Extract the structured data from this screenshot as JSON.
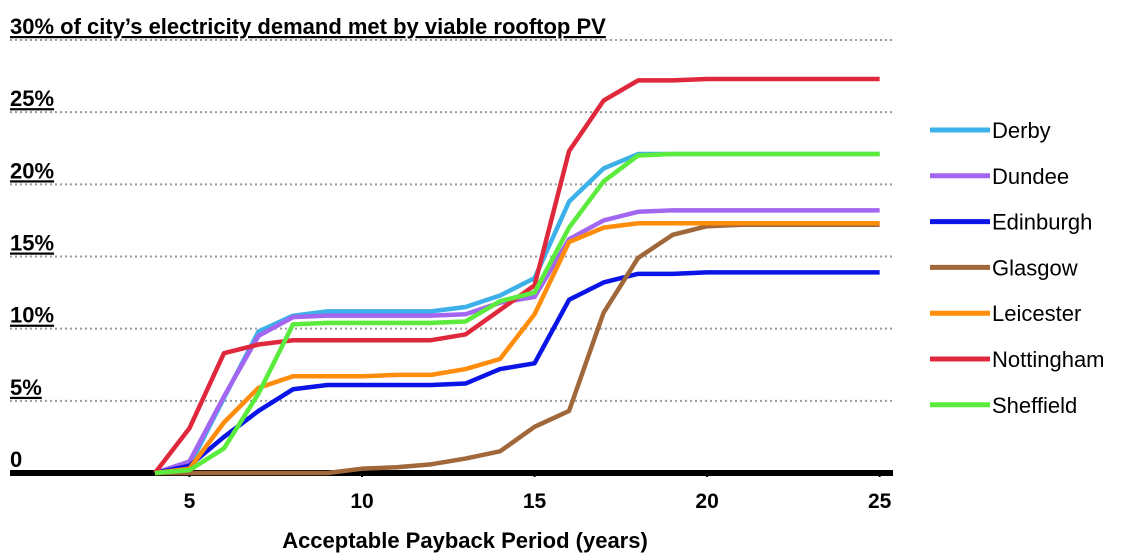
{
  "chart_data": {
    "type": "line",
    "x_label": "Acceptable Payback Period (years)",
    "x": [
      4,
      5,
      6,
      7,
      8,
      9,
      10,
      11,
      12,
      13,
      14,
      15,
      16,
      17,
      18,
      19,
      20,
      21,
      22,
      23,
      24,
      25
    ],
    "series": [
      {
        "name": "Derby",
        "color": "#3cb0e8",
        "values": [
          0,
          0.5,
          5.2,
          9.8,
          10.9,
          11.2,
          11.2,
          11.2,
          11.2,
          11.5,
          12.3,
          13.5,
          18.8,
          21.1,
          22.1,
          22.1,
          22.1,
          22.1,
          22.1,
          22.1,
          22.1,
          22.1
        ]
      },
      {
        "name": "Dundee",
        "color": "#a366f0",
        "values": [
          0,
          0.8,
          5.3,
          9.5,
          10.8,
          10.9,
          10.9,
          10.9,
          10.9,
          11.0,
          11.8,
          12.2,
          16.2,
          17.5,
          18.1,
          18.2,
          18.2,
          18.2,
          18.2,
          18.2,
          18.2,
          18.2
        ]
      },
      {
        "name": "Edinburgh",
        "color": "#0a14e6",
        "values": [
          0,
          0.5,
          2.5,
          4.3,
          5.8,
          6.1,
          6.1,
          6.1,
          6.1,
          6.2,
          7.2,
          7.6,
          12.0,
          13.2,
          13.8,
          13.8,
          13.9,
          13.9,
          13.9,
          13.9,
          13.9,
          13.9
        ]
      },
      {
        "name": "Glasgow",
        "color": "#a0683a",
        "values": [
          0,
          0,
          0,
          0,
          0,
          0,
          0.3,
          0.4,
          0.6,
          1.0,
          1.5,
          3.2,
          4.3,
          11.1,
          14.9,
          16.5,
          17.1,
          17.2,
          17.2,
          17.2,
          17.2,
          17.2
        ]
      },
      {
        "name": "Leicester",
        "color": "#ff8c0a",
        "values": [
          0,
          0.3,
          3.5,
          5.9,
          6.7,
          6.7,
          6.7,
          6.8,
          6.8,
          7.2,
          7.9,
          11.0,
          16.0,
          17.0,
          17.3,
          17.3,
          17.3,
          17.3,
          17.3,
          17.3,
          17.3,
          17.3
        ]
      },
      {
        "name": "Nottingham",
        "color": "#e0283c",
        "values": [
          0,
          3.1,
          8.3,
          8.9,
          9.2,
          9.2,
          9.2,
          9.2,
          9.2,
          9.6,
          11.3,
          13.0,
          22.3,
          25.8,
          27.2,
          27.2,
          27.3,
          27.3,
          27.3,
          27.3,
          27.3,
          27.3
        ]
      },
      {
        "name": "Sheffield",
        "color": "#5aeb3c",
        "values": [
          0,
          0.2,
          1.7,
          5.5,
          10.3,
          10.4,
          10.4,
          10.4,
          10.4,
          10.5,
          11.9,
          12.5,
          17.0,
          20.2,
          22.0,
          22.1,
          22.1,
          22.1,
          22.1,
          22.1,
          22.1,
          22.1
        ]
      }
    ],
    "xlim": [
      -0.2,
      25.3
    ],
    "xticks": [
      5,
      10,
      15,
      20,
      25
    ],
    "ylim": [
      0,
      30
    ],
    "yticks": [
      0,
      {
        "value": 5,
        "label": "5%"
      },
      {
        "value": 10,
        "label": "10%"
      },
      {
        "value": 15,
        "label": "15%"
      },
      {
        "value": 20,
        "label": "20%"
      },
      {
        "value": 25,
        "label": "25%"
      },
      {
        "value": 30,
        "label": "30% of city’s electricity demand met by viable rooftop PV"
      }
    ],
    "grid": true,
    "legend": "right"
  }
}
